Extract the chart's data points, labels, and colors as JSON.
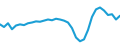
{
  "x": [
    0,
    1,
    2,
    3,
    4,
    5,
    6,
    7,
    8,
    9,
    10,
    11,
    12,
    13,
    14,
    15,
    16,
    17,
    18,
    19,
    20,
    21,
    22,
    23,
    24,
    25,
    26,
    27,
    28,
    29,
    30
  ],
  "y": [
    55,
    48,
    58,
    42,
    52,
    55,
    53,
    58,
    60,
    63,
    62,
    65,
    68,
    66,
    70,
    68,
    65,
    60,
    45,
    20,
    10,
    15,
    40,
    75,
    95,
    100,
    92,
    80,
    82,
    68,
    78
  ],
  "line_color": "#1b9fd5",
  "line_width": 1.5,
  "bg_color": "#ffffff"
}
